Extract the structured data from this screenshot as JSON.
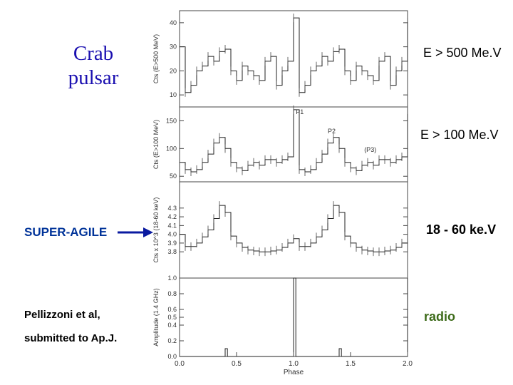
{
  "labels": {
    "crab_line1": "Crab",
    "crab_line2": "pulsar",
    "band_500": "E > 500 Me.V",
    "band_100": "E > 100 Me.V",
    "band_hard": "18 - 60 ke.V",
    "band_radio": "radio",
    "super_agile": "SUPER-AGILE",
    "ref_line1": "Pellizzoni et al,",
    "ref_line2": "submitted to Ap.J."
  },
  "colors": {
    "title": "#1a0fb0",
    "super_agile": "#003399",
    "radio": "#3d6b1a",
    "arrow": "#0a1aa0"
  },
  "chart_data": {
    "type": "line",
    "xlabel": "Phase",
    "xlim": [
      0.0,
      2.0
    ],
    "x_ticks": [
      "0.0",
      "0.5",
      "1.0",
      "1.5",
      "2.0"
    ],
    "panels": [
      {
        "ylabel": "Cts (E>500 MeV)",
        "ylim": [
          5,
          45
        ],
        "y_ticks": [
          "10",
          "20",
          "30",
          "40"
        ],
        "phase": [
          0.0,
          0.05,
          0.1,
          0.15,
          0.2,
          0.25,
          0.3,
          0.35,
          0.4,
          0.45,
          0.5,
          0.55,
          0.6,
          0.65,
          0.7,
          0.75,
          0.8,
          0.85,
          0.9,
          0.95,
          1.0
        ],
        "values": [
          30,
          11,
          14,
          20,
          22,
          26,
          24,
          28,
          29,
          20,
          16,
          22,
          20,
          18,
          16,
          24,
          26,
          14,
          20,
          24,
          42
        ]
      },
      {
        "ylabel": "Cts (E>100 MeV)",
        "ylim": [
          40,
          175
        ],
        "y_ticks": [
          "50",
          "100",
          "150"
        ],
        "annotations": [
          "P1",
          "P2",
          "(P3)"
        ],
        "phase": [
          0.0,
          0.05,
          0.1,
          0.15,
          0.2,
          0.25,
          0.3,
          0.35,
          0.4,
          0.45,
          0.5,
          0.55,
          0.6,
          0.65,
          0.7,
          0.75,
          0.8,
          0.85,
          0.9,
          0.95,
          1.0
        ],
        "values": [
          75,
          62,
          58,
          62,
          75,
          90,
          110,
          120,
          100,
          75,
          65,
          60,
          70,
          75,
          70,
          80,
          80,
          75,
          80,
          85,
          170
        ]
      },
      {
        "ylabel": "Cts x 10^3 (18-60 keV)",
        "ylim": [
          3.5,
          4.6
        ],
        "y_ticks": [
          "3.8",
          "3.9",
          "4.0",
          "4.1",
          "4.2",
          "4.3"
        ],
        "phase": [
          0.0,
          0.05,
          0.1,
          0.15,
          0.2,
          0.25,
          0.3,
          0.35,
          0.4,
          0.45,
          0.5,
          0.55,
          0.6,
          0.65,
          0.7,
          0.75,
          0.8,
          0.85,
          0.9,
          0.95,
          1.0
        ],
        "values": [
          4.0,
          3.86,
          3.86,
          3.9,
          3.97,
          4.05,
          4.18,
          4.33,
          4.25,
          3.98,
          3.9,
          3.85,
          3.82,
          3.81,
          3.8,
          3.8,
          3.81,
          3.82,
          3.85,
          3.9,
          3.95
        ]
      },
      {
        "ylabel": "Amplitude (1.4 GHz)",
        "ylim": [
          0.0,
          1.0
        ],
        "y_ticks": [
          "0.0",
          "0.2",
          "0.4",
          "0.5",
          "0.6",
          "0.8",
          "1.0"
        ],
        "phase": [
          0.0,
          0.1,
          0.2,
          0.3,
          0.38,
          0.4,
          0.42,
          0.5,
          0.6,
          0.7,
          0.8,
          0.9,
          0.98,
          1.0,
          1.02
        ],
        "values": [
          0.0,
          0.0,
          0.0,
          0.0,
          0.0,
          0.1,
          0.0,
          0.0,
          0.0,
          0.0,
          0.0,
          0.0,
          0.0,
          1.0,
          0.0
        ]
      }
    ]
  }
}
